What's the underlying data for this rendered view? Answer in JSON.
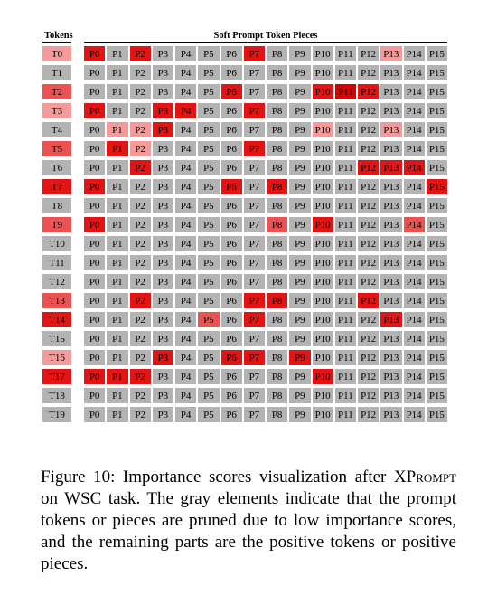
{
  "header": {
    "tokens_label": "Tokens",
    "pieces_label": "Soft Prompt Token Pieces"
  },
  "colors": {
    "gray": "#b3b3b3",
    "light": "#f49a9a",
    "mid": "#ec5252",
    "strong": "#e41414",
    "max": "#d80000"
  },
  "pieces": [
    "P0",
    "P1",
    "P2",
    "P3",
    "P4",
    "P5",
    "P6",
    "P7",
    "P8",
    "P9",
    "P10",
    "P11",
    "P12",
    "P13",
    "P14",
    "P15"
  ],
  "rows": [
    {
      "token": "T0",
      "token_level": "light",
      "levels": {
        "0": "strong",
        "2": "strong",
        "7": "strong",
        "13": "light"
      }
    },
    {
      "token": "T1",
      "token_level": "gray",
      "levels": {}
    },
    {
      "token": "T2",
      "token_level": "mid",
      "levels": {
        "6": "strong",
        "10": "strong",
        "11": "max",
        "12": "strong"
      }
    },
    {
      "token": "T3",
      "token_level": "light",
      "levels": {
        "0": "strong",
        "3": "strong",
        "4": "strong",
        "7": "strong"
      }
    },
    {
      "token": "T4",
      "token_level": "gray",
      "levels": {
        "1": "light",
        "2": "light",
        "3": "strong",
        "10": "light",
        "13": "light"
      }
    },
    {
      "token": "T5",
      "token_level": "mid",
      "levels": {
        "1": "strong",
        "2": "light",
        "7": "strong"
      }
    },
    {
      "token": "T6",
      "token_level": "gray",
      "levels": {
        "2": "strong",
        "12": "strong",
        "13": "strong",
        "14": "strong"
      }
    },
    {
      "token": "T7",
      "token_level": "strong",
      "levels": {
        "0": "strong",
        "6": "strong",
        "8": "strong",
        "15": "strong"
      }
    },
    {
      "token": "T8",
      "token_level": "gray",
      "levels": {}
    },
    {
      "token": "T9",
      "token_level": "mid",
      "levels": {
        "0": "strong",
        "8": "mid",
        "10": "strong",
        "14": "mid"
      }
    },
    {
      "token": "T10",
      "token_level": "gray",
      "levels": {}
    },
    {
      "token": "T11",
      "token_level": "gray",
      "levels": {}
    },
    {
      "token": "T12",
      "token_level": "gray",
      "levels": {}
    },
    {
      "token": "T13",
      "token_level": "mid",
      "levels": {
        "2": "strong",
        "7": "strong",
        "8": "strong",
        "12": "strong"
      }
    },
    {
      "token": "T14",
      "token_level": "strong",
      "levels": {
        "5": "mid",
        "7": "strong",
        "13": "strong"
      }
    },
    {
      "token": "T15",
      "token_level": "gray",
      "levels": {}
    },
    {
      "token": "T16",
      "token_level": "light",
      "levels": {
        "3": "strong",
        "6": "strong",
        "7": "strong",
        "9": "strong"
      }
    },
    {
      "token": "T17",
      "token_level": "strong",
      "levels": {
        "0": "strong",
        "1": "strong",
        "2": "strong",
        "10": "strong"
      }
    },
    {
      "token": "T18",
      "token_level": "gray",
      "levels": {}
    },
    {
      "token": "T19",
      "token_level": "gray",
      "levels": {}
    }
  ],
  "caption": {
    "lead": "Figure 10:  Importance scores visualization after X",
    "smallcaps": "Prompt",
    "rest": " on WSC task. The gray elements indicate that the prompt tokens or pieces are pruned due to low importance scores, and the remaining parts are the positive tokens or positive pieces."
  }
}
